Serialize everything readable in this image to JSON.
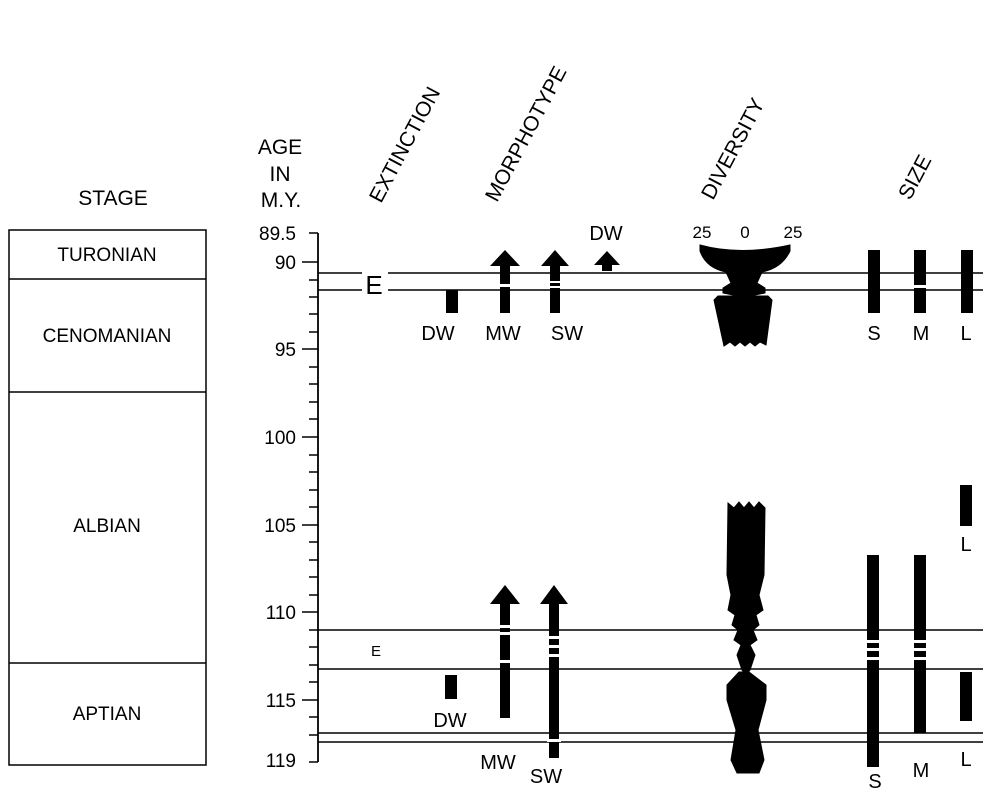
{
  "headers": {
    "stage": "STAGE",
    "age_line1": "AGE",
    "age_line2": "IN",
    "age_line3": "M.Y.",
    "extinction": "EXTINCTION",
    "morphotype": "MORPHOTYPE",
    "diversity": "DIVERSITY",
    "size": "SIZE"
  },
  "stages": [
    {
      "name": "TURONIAN",
      "from_ma": 89.5,
      "to_ma": 90.7
    },
    {
      "name": "CENOMANIAN",
      "from_ma": 90.7,
      "to_ma": 97.0
    },
    {
      "name": "ALBIAN",
      "from_ma": 97.0,
      "to_ma": 112.8
    },
    {
      "name": "APTIAN",
      "from_ma": 112.8,
      "to_ma": 119.0
    }
  ],
  "age_axis": {
    "top_label": "89.5",
    "bottom_label": "119",
    "labels": [
      "90",
      "95",
      "100",
      "105",
      "110",
      "115"
    ],
    "range_ma": [
      89.5,
      119
    ]
  },
  "extinction_events": [
    {
      "label": "E",
      "from_ma": 90.7,
      "to_ma": 91.7
    },
    {
      "label": "E",
      "from_ma": 111.0,
      "to_ma": 113.1
    }
  ],
  "extra_lines_ma": [
    117.2,
    117.7
  ],
  "morphotype_labels": {
    "dw_upper": "DW",
    "mw_upper": "MW",
    "sw_upper": "SW",
    "dw_top": "DW",
    "dw_lower": "DW",
    "mw_lower": "MW",
    "sw_lower": "SW"
  },
  "diversity_scale": {
    "left": "25",
    "center": "0",
    "right": "25"
  },
  "size_labels": {
    "s_upper": "S",
    "m_upper": "M",
    "l_upper": "L",
    "s_lower": "S",
    "m_lower": "M",
    "l_lower": "L"
  },
  "ranges": [
    {
      "col": "dw",
      "from_ma": 91.7,
      "to_ma": 93.0
    },
    {
      "col": "mw",
      "from_ma": 90.5,
      "to_ma": 93.0,
      "arrow_top": true
    },
    {
      "col": "sw",
      "from_ma": 90.5,
      "to_ma": 93.0,
      "arrow_top": true
    },
    {
      "col": "dw2",
      "from_ma": 90.4,
      "to_ma": 90.5,
      "arrow_top": true
    },
    {
      "col": "s",
      "from_ma": 89.5,
      "to_ma": 93.0
    },
    {
      "col": "m",
      "from_ma": 89.5,
      "to_ma": 93.0
    },
    {
      "col": "l",
      "from_ma": 89.5,
      "to_ma": 93.0
    },
    {
      "col": "l",
      "from_ma": 102.9,
      "to_ma": 105.0
    },
    {
      "col": "s",
      "from_ma": 106.8,
      "to_ma": 119.0
    },
    {
      "col": "m",
      "from_ma": 106.8,
      "to_ma": 117.3
    },
    {
      "col": "mw",
      "from_ma": 109.4,
      "to_ma": 116.2,
      "arrow_top": true
    },
    {
      "col": "sw",
      "from_ma": 109.4,
      "to_ma": 118.9,
      "arrow_top": true
    },
    {
      "col": "dw",
      "from_ma": 114.0,
      "to_ma": 115.3
    },
    {
      "col": "l",
      "from_ma": 113.8,
      "to_ma": 116.3
    }
  ]
}
